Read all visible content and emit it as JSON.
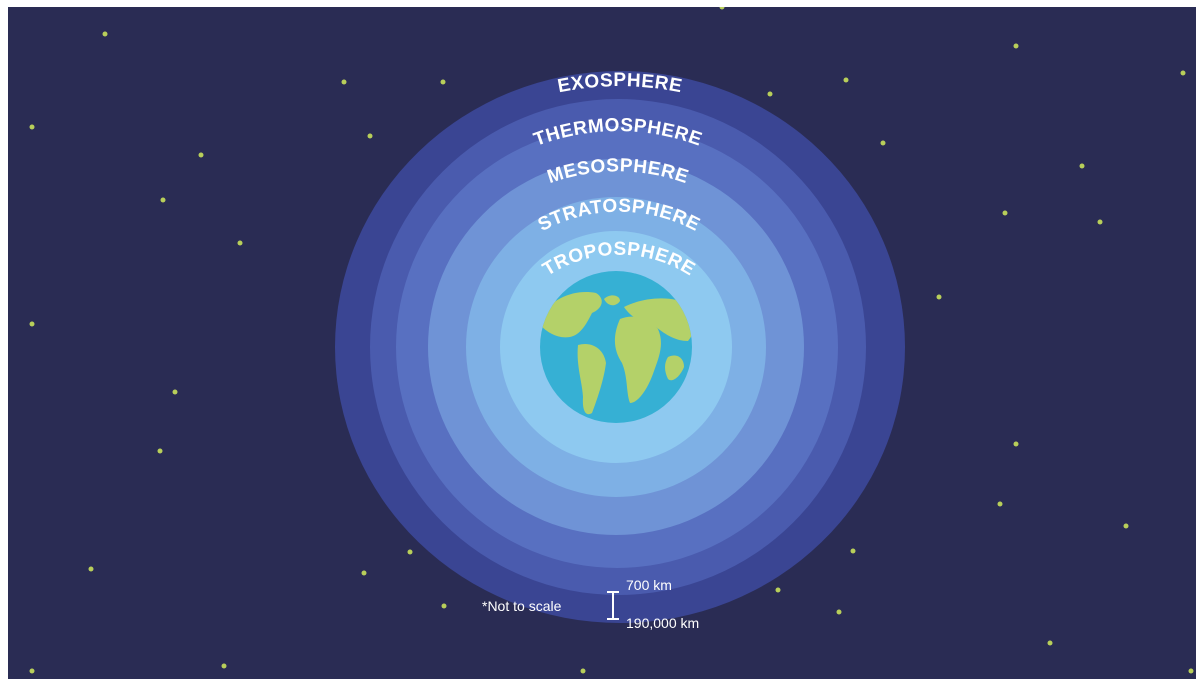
{
  "layers": [
    {
      "name": "EXOSPHERE",
      "color": "#3a4593"
    },
    {
      "name": "THERMOSPHERE",
      "color": "#4a5bae"
    },
    {
      "name": "MESOSPHERE",
      "color": "#5870c1"
    },
    {
      "name": "STRATOSPHERE",
      "color": "#6f93d6"
    },
    {
      "name": "TROPOSPHERE",
      "color": "#8ec9f0"
    }
  ],
  "colors": {
    "space": "#2a2c54",
    "star": "#b8cf5a",
    "ocean": "#36b0d4",
    "land": "#b4d169"
  },
  "footnote": "*Not to scale",
  "scale": {
    "top_label": "700 km",
    "bottom_label": "190,000 km"
  }
}
